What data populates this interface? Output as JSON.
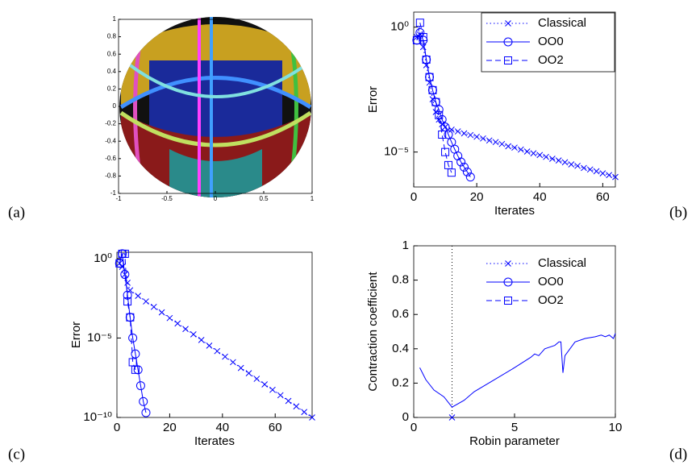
{
  "chart_data": [
    {
      "type": "mesh",
      "panel_label": "(a)",
      "xlim": [
        -1,
        1
      ],
      "ylim": [
        -1,
        1
      ],
      "xticks": [
        -1,
        -0.5,
        0,
        0.5,
        1
      ],
      "yticks": [
        -1,
        -0.8,
        -0.6,
        -0.4,
        -0.2,
        0,
        0.2,
        0.4,
        0.6,
        0.8,
        1
      ]
    },
    {
      "type": "line",
      "panel_label": "(b)",
      "xlabel": "Iterates",
      "ylabel": "Error",
      "log_y": true,
      "xlim": [
        0,
        64
      ],
      "ylim": [
        4e-07,
        4
      ],
      "xticks": [
        0,
        20,
        40,
        60
      ],
      "yticks": [
        {
          "value": 1,
          "label": "10⁰"
        },
        {
          "value": 1e-05,
          "label": "10⁻⁵"
        }
      ],
      "legend": "upper right",
      "series": [
        {
          "name": "Classical",
          "color": "#0000ff",
          "marker": "x",
          "dash": "dotted",
          "x": [
            1,
            2,
            3,
            4,
            5,
            6,
            7,
            8,
            9,
            10,
            12,
            14,
            16,
            18,
            20,
            22,
            24,
            26,
            28,
            30,
            32,
            34,
            36,
            38,
            40,
            42,
            44,
            46,
            48,
            50,
            52,
            54,
            56,
            58,
            60,
            62,
            64
          ],
          "values": [
            0.4,
            0.5,
            0.16,
            0.03,
            0.006,
            0.0013,
            0.0004,
            0.0002,
            0.00013,
            0.0001,
            7.9e-05,
            6.7e-05,
            5.6e-05,
            4.8e-05,
            4.1e-05,
            3.5e-05,
            2.9e-05,
            2.5e-05,
            2.1e-05,
            1.7e-05,
            1.5e-05,
            1.26e-05,
            1.05e-05,
            8.9e-06,
            7.6e-06,
            6.4e-06,
            5.4e-06,
            4.6e-06,
            3.9e-06,
            3.2e-06,
            2.8e-06,
            2.3e-06,
            2e-06,
            1.7e-06,
            1.4e-06,
            1.2e-06,
            1e-06
          ]
        },
        {
          "name": "OO0",
          "color": "#0000ff",
          "marker": "o",
          "dash": "solid",
          "x": [
            1,
            2,
            3,
            4,
            5,
            6,
            7,
            8,
            9,
            10,
            11,
            12,
            13,
            14,
            15,
            16,
            17,
            18
          ],
          "values": [
            0.3,
            0.6,
            0.3,
            0.05,
            0.01,
            0.003,
            0.001,
            0.0005,
            0.0002,
            0.0001,
            5e-05,
            2.5e-05,
            1.3e-05,
            7e-06,
            4e-06,
            2.5e-06,
            1.6e-06,
            1e-06
          ]
        },
        {
          "name": "OO2",
          "color": "#0000ff",
          "marker": "s",
          "dash": "dashed",
          "x": [
            1,
            2,
            3,
            4,
            5,
            6,
            7,
            8,
            9,
            10,
            11,
            12
          ],
          "values": [
            0.3,
            1.5,
            0.4,
            0.05,
            0.01,
            0.003,
            0.001,
            0.0003,
            5e-05,
            1e-05,
            3e-06,
            1.5e-06
          ]
        }
      ]
    },
    {
      "type": "line",
      "panel_label": "(c)",
      "xlabel": "Iterates",
      "ylabel": "Error",
      "log_y": true,
      "xlim": [
        0,
        74
      ],
      "ylim": [
        1e-10,
        2.5
      ],
      "xticks": [
        0,
        20,
        40,
        60
      ],
      "yticks": [
        {
          "value": 1,
          "label": "10⁰"
        },
        {
          "value": 1e-05,
          "label": "10⁻⁵"
        },
        {
          "value": 1e-10,
          "label": "10⁻¹⁰"
        }
      ],
      "legend": "upper right",
      "series": [
        {
          "name": "Classical",
          "color": "#0000ff",
          "marker": "x",
          "dash": "dotted",
          "x": [
            1,
            2,
            3,
            4,
            5,
            8,
            11,
            14,
            17,
            20,
            23,
            26,
            29,
            32,
            35,
            38,
            41,
            44,
            47,
            50,
            53,
            56,
            59,
            62,
            65,
            68,
            71,
            74
          ],
          "values": [
            0.5,
            0.3,
            0.1,
            0.03,
            0.01,
            0.0045,
            0.002,
            0.00091,
            0.00041,
            0.00018,
            8.2e-05,
            3.7e-05,
            1.7e-05,
            7.5e-06,
            3.3e-06,
            1.5e-06,
            6.7e-07,
            3e-07,
            1.3e-07,
            6.1e-08,
            2.7e-08,
            1.2e-08,
            5.5e-09,
            2.5e-09,
            1.1e-09,
            5e-10,
            2.2e-10,
            1e-10
          ]
        },
        {
          "name": "OO0",
          "color": "#0000ff",
          "marker": "o",
          "dash": "solid",
          "x": [
            1,
            2,
            3,
            4,
            5,
            6,
            7,
            8,
            9,
            10,
            11
          ],
          "values": [
            0.5,
            2,
            0.1,
            0.005,
            0.0002,
            1e-05,
            1e-06,
            1e-07,
            1e-08,
            1e-09,
            2e-10
          ]
        },
        {
          "name": "OO2",
          "color": "#0000ff",
          "marker": "s",
          "dash": "dashed",
          "x": [
            1,
            2,
            3,
            4,
            5,
            6,
            7
          ],
          "values": [
            0.5,
            2,
            2,
            0.002,
            0.0002,
            3e-07,
            1e-07
          ]
        }
      ]
    },
    {
      "type": "line",
      "panel_label": "(d)",
      "xlabel": "Robin parameter",
      "ylabel": "Contraction coefficient",
      "log_y": false,
      "xlim": [
        0,
        10
      ],
      "ylim": [
        0,
        1
      ],
      "xticks": [
        0,
        5,
        10
      ],
      "yticks": [
        0,
        0.2,
        0.4,
        0.6,
        0.8,
        1
      ],
      "optimum": {
        "x": 1.9,
        "y": 0
      },
      "series": [
        {
          "color": "#0000ff",
          "marker": "none",
          "dash": "solid",
          "x": [
            0.3,
            0.6,
            1,
            1.5,
            1.9,
            2.5,
            3,
            4,
            5,
            5.8,
            6,
            6.2,
            6.5,
            7,
            7.2,
            7.3,
            7.4,
            7.5,
            8,
            8.5,
            9,
            9.3,
            9.5,
            9.7,
            9.9,
            10
          ],
          "values": [
            0.29,
            0.22,
            0.16,
            0.12,
            0.06,
            0.1,
            0.15,
            0.22,
            0.29,
            0.35,
            0.37,
            0.36,
            0.4,
            0.42,
            0.44,
            0.44,
            0.26,
            0.36,
            0.44,
            0.46,
            0.47,
            0.48,
            0.47,
            0.48,
            0.46,
            0.49
          ]
        }
      ]
    }
  ]
}
